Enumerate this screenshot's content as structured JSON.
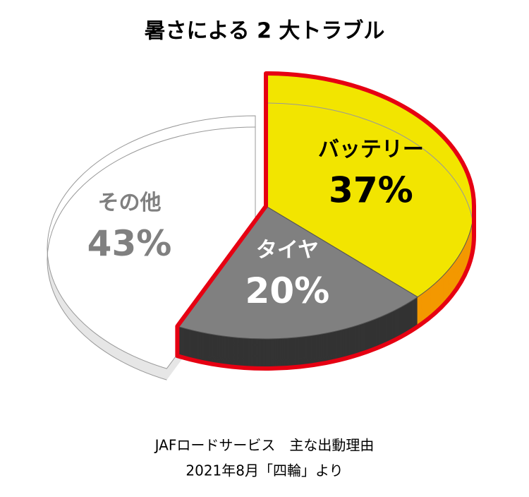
{
  "chart_data": {
    "type": "pie",
    "title": "暑さによる 2 大トラブル",
    "categories": [
      "バッテリー",
      "タイヤ",
      "その他"
    ],
    "values": [
      37,
      20,
      43
    ],
    "value_labels": [
      "37%",
      "20%",
      "43%"
    ],
    "colors": [
      "#f2e500",
      "#808080",
      "#ffffff"
    ],
    "side_colors": [
      "#f39800",
      "#333333",
      "#e6e6e6"
    ],
    "label_colors": [
      "#000000",
      "#ffffff",
      "#808080"
    ],
    "highlight": [
      true,
      true,
      false
    ],
    "highlight_color": "#e60012",
    "notes": [
      "JAFロードサービス　主な出動理由",
      "2021年8月「四輪」より"
    ]
  }
}
